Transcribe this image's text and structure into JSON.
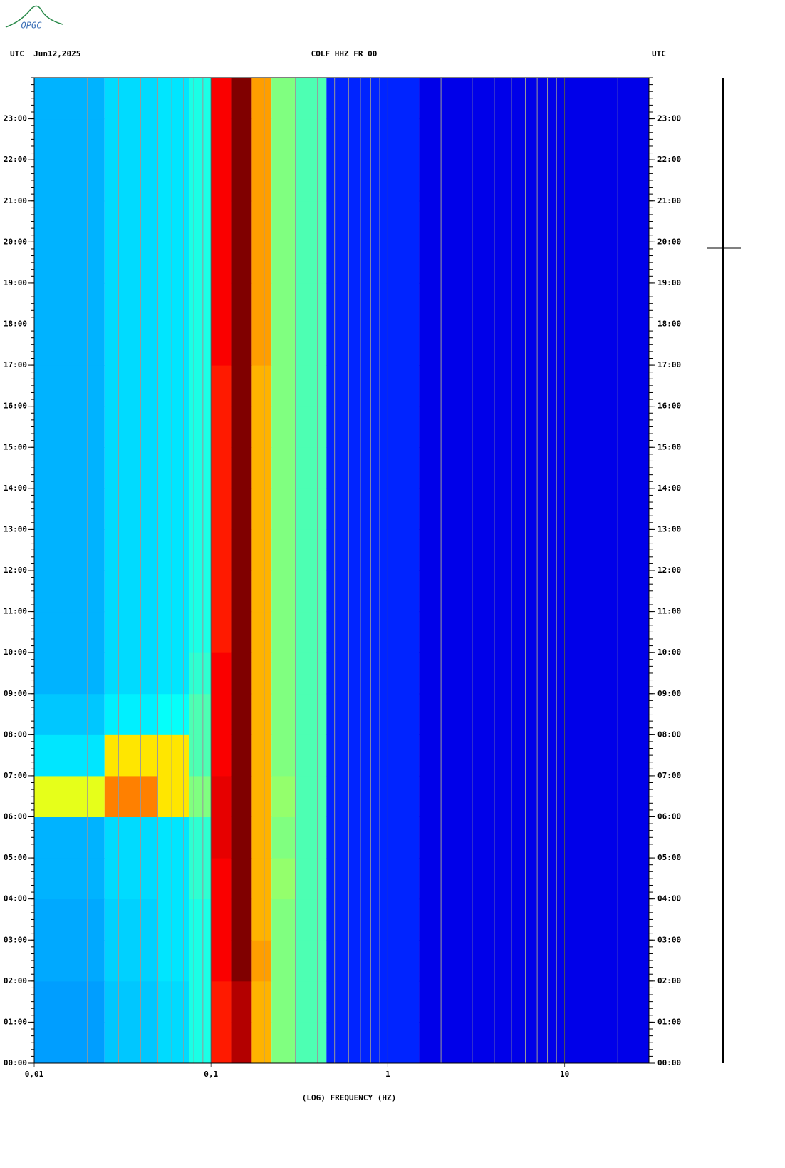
{
  "chart_data": {
    "type": "spectrogram",
    "logo": "OPGC",
    "title_left": "UTC  Jun12,2025",
    "title": "COLF HHZ FR 00",
    "title_right": "UTC",
    "xlabel": "(LOG) FREQUENCY (HZ)",
    "xscale": "log",
    "xlim": [
      0.01,
      30
    ],
    "xticks": [
      {
        "value": 0.01,
        "label": "0,01"
      },
      {
        "value": 0.1,
        "label": "0,1"
      },
      1,
      10
    ],
    "ylim": [
      0,
      24
    ],
    "yticks": [
      {
        "value": 0,
        "label": "00:00"
      },
      {
        "value": 1,
        "label": "01:00"
      },
      {
        "value": 2,
        "label": "02:00"
      },
      {
        "value": 3,
        "label": "03:00"
      },
      {
        "value": 4,
        "label": "04:00"
      },
      {
        "value": 5,
        "label": "05:00"
      },
      {
        "value": 6,
        "label": "06:00"
      },
      {
        "value": 7,
        "label": "07:00"
      },
      {
        "value": 8,
        "label": "08:00"
      },
      {
        "value": 9,
        "label": "09:00"
      },
      {
        "value": 10,
        "label": "10:00"
      },
      {
        "value": 11,
        "label": "11:00"
      },
      {
        "value": 12,
        "label": "12:00"
      },
      {
        "value": 13,
        "label": "13:00"
      },
      {
        "value": 14,
        "label": "14:00"
      },
      {
        "value": 15,
        "label": "15:00"
      },
      {
        "value": 16,
        "label": "16:00"
      },
      {
        "value": 17,
        "label": "17:00"
      },
      {
        "value": 18,
        "label": "18:00"
      },
      {
        "value": 19,
        "label": "19:00"
      },
      {
        "value": 20,
        "label": "20:00"
      },
      {
        "value": 21,
        "label": "21:00"
      },
      {
        "value": 22,
        "label": "22:00"
      },
      {
        "value": 23,
        "label": "23:00"
      }
    ],
    "colorscale": [
      "#00008f",
      "#0000ff",
      "#0080ff",
      "#00ffff",
      "#80ff80",
      "#ffff00",
      "#ff8000",
      "#ff0000",
      "#800000"
    ],
    "zlim": [
      0,
      10
    ],
    "bins": [
      0.01,
      0.025,
      0.05,
      0.075,
      0.1,
      0.13,
      0.17,
      0.22,
      0.3,
      0.45,
      1.5,
      30
    ],
    "z": [
      [
        2.8,
        3.2,
        3.4,
        4,
        8.5,
        9.5,
        7,
        5,
        4.5,
        1.6,
        1
      ],
      [
        2.8,
        3.2,
        3.4,
        4,
        8.5,
        9.5,
        7,
        5,
        4.5,
        1.6,
        1
      ],
      [
        2.9,
        3.3,
        3.5,
        4,
        8.8,
        10,
        7.2,
        5,
        4.5,
        1.6,
        1
      ],
      [
        2.9,
        3.3,
        3.5,
        4,
        8.8,
        10,
        7,
        5,
        4.5,
        1.6,
        1
      ],
      [
        3,
        3.4,
        3.5,
        4.2,
        8.8,
        10,
        7,
        5.2,
        4.5,
        1.6,
        1
      ],
      [
        3,
        3.4,
        3.5,
        4.2,
        9,
        10,
        7,
        5,
        4.5,
        1.6,
        1
      ],
      [
        6,
        7.5,
        6.5,
        5,
        9,
        10,
        7,
        5.2,
        4.5,
        1.6,
        1
      ],
      [
        3.5,
        6.5,
        6.5,
        4.5,
        8.8,
        10,
        7,
        5,
        4.5,
        1.6,
        1
      ],
      [
        3.2,
        3.6,
        3.8,
        4.5,
        8.8,
        10,
        7,
        5,
        4.5,
        1.6,
        1
      ],
      [
        3,
        3.4,
        3.5,
        4.2,
        8.8,
        10,
        7,
        5,
        4.5,
        1.6,
        1
      ],
      [
        3,
        3.4,
        3.5,
        4,
        8.5,
        10,
        7,
        5,
        4.5,
        1.6,
        1
      ],
      [
        3,
        3.4,
        3.5,
        4,
        8.5,
        10,
        7,
        5,
        4.5,
        1.6,
        1
      ],
      [
        3,
        3.4,
        3.5,
        4,
        8.5,
        10,
        7,
        5,
        4.5,
        1.6,
        1
      ],
      [
        3,
        3.4,
        3.5,
        4,
        8.5,
        10,
        7,
        5,
        4.5,
        1.6,
        1
      ],
      [
        3,
        3.4,
        3.5,
        4,
        8.5,
        10,
        7,
        5,
        4.5,
        1.6,
        1
      ],
      [
        3,
        3.4,
        3.5,
        4,
        8.5,
        10,
        7,
        5,
        4.5,
        1.6,
        1
      ],
      [
        3,
        3.4,
        3.5,
        4,
        8.5,
        10,
        7,
        5,
        4.5,
        1.6,
        1
      ],
      [
        3,
        3.4,
        3.5,
        4,
        8.8,
        10,
        7.2,
        5,
        4.5,
        1.6,
        1
      ],
      [
        3,
        3.4,
        3.5,
        4,
        8.8,
        10,
        7.2,
        5,
        4.5,
        1.6,
        1
      ],
      [
        3,
        3.4,
        3.5,
        4,
        8.8,
        10,
        7.2,
        5,
        4.5,
        1.6,
        1
      ],
      [
        3,
        3.4,
        3.5,
        4,
        8.8,
        10,
        7.2,
        5,
        4.5,
        1.6,
        1
      ],
      [
        3,
        3.4,
        3.5,
        4,
        8.8,
        10,
        7.2,
        5,
        4.5,
        1.6,
        1
      ],
      [
        3,
        3.4,
        3.5,
        4,
        8.8,
        10,
        7.2,
        5,
        4.5,
        1.6,
        1
      ],
      [
        3,
        3.4,
        3.5,
        4,
        8.8,
        10,
        7.2,
        5,
        4.5,
        1.6,
        1
      ]
    ]
  }
}
